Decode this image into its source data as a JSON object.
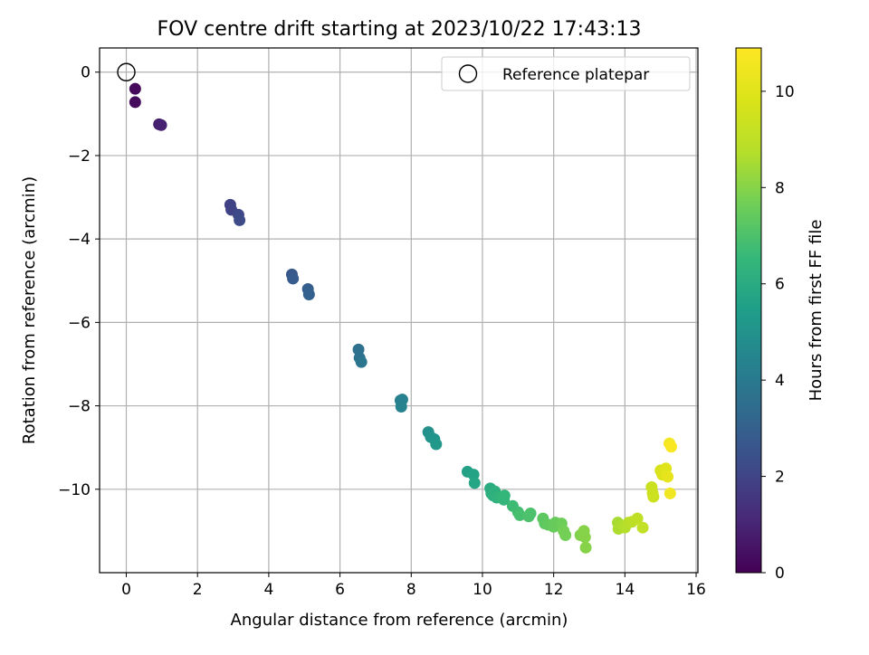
{
  "chart_data": {
    "type": "scatter",
    "title": "FOV centre drift starting at 2023/10/22 17:43:13",
    "xlabel": "Angular distance from reference (arcmin)",
    "ylabel": "Rotation from reference (arcmin)",
    "colorbar_label": "Hours from first FF file",
    "colormap": "viridis",
    "xlim": [
      -0.75,
      16.05
    ],
    "ylim": [
      -12.0,
      0.58
    ],
    "clim": [
      0,
      10.9
    ],
    "xticks": [
      "0",
      "2",
      "4",
      "6",
      "8",
      "10",
      "12",
      "14",
      "16"
    ],
    "yticks": [
      "0",
      "−2",
      "−4",
      "−6",
      "−8",
      "−10"
    ],
    "cticks": [
      "0",
      "2",
      "4",
      "6",
      "8",
      "10"
    ],
    "grid": true,
    "legend": {
      "placement": "upper right",
      "label": "Reference platepar"
    },
    "reference_point": {
      "x": 0,
      "y": 0
    },
    "points": [
      {
        "x": 0.25,
        "y": -0.4,
        "h": 0.2
      },
      {
        "x": 0.25,
        "y": -0.72,
        "h": 0.3
      },
      {
        "x": 0.92,
        "y": -1.25,
        "h": 0.8
      },
      {
        "x": 0.98,
        "y": -1.27,
        "h": 0.9
      },
      {
        "x": 2.92,
        "y": -3.18,
        "h": 1.9
      },
      {
        "x": 2.95,
        "y": -3.3,
        "h": 2.0
      },
      {
        "x": 3.15,
        "y": -3.42,
        "h": 2.1
      },
      {
        "x": 3.18,
        "y": -3.55,
        "h": 2.2
      },
      {
        "x": 4.65,
        "y": -4.85,
        "h": 2.7
      },
      {
        "x": 4.68,
        "y": -4.95,
        "h": 2.8
      },
      {
        "x": 5.1,
        "y": -5.2,
        "h": 2.9
      },
      {
        "x": 5.13,
        "y": -5.33,
        "h": 3.0
      },
      {
        "x": 6.52,
        "y": -6.65,
        "h": 3.6
      },
      {
        "x": 6.55,
        "y": -6.85,
        "h": 3.7
      },
      {
        "x": 6.6,
        "y": -6.95,
        "h": 3.8
      },
      {
        "x": 7.7,
        "y": -7.87,
        "h": 4.2
      },
      {
        "x": 7.75,
        "y": -7.85,
        "h": 4.3
      },
      {
        "x": 7.72,
        "y": -8.02,
        "h": 4.4
      },
      {
        "x": 8.48,
        "y": -8.63,
        "h": 4.9
      },
      {
        "x": 8.55,
        "y": -8.75,
        "h": 5.0
      },
      {
        "x": 8.65,
        "y": -8.8,
        "h": 5.1
      },
      {
        "x": 8.7,
        "y": -8.92,
        "h": 5.2
      },
      {
        "x": 9.58,
        "y": -9.58,
        "h": 5.6
      },
      {
        "x": 9.75,
        "y": -9.65,
        "h": 5.7
      },
      {
        "x": 9.78,
        "y": -9.85,
        "h": 5.8
      },
      {
        "x": 10.22,
        "y": -9.98,
        "h": 6.0
      },
      {
        "x": 10.25,
        "y": -10.1,
        "h": 6.1
      },
      {
        "x": 10.3,
        "y": -10.15,
        "h": 6.2
      },
      {
        "x": 10.35,
        "y": -10.05,
        "h": 6.2
      },
      {
        "x": 10.4,
        "y": -10.2,
        "h": 6.3
      },
      {
        "x": 10.52,
        "y": -10.2,
        "h": 6.4
      },
      {
        "x": 10.6,
        "y": -10.25,
        "h": 6.5
      },
      {
        "x": 10.62,
        "y": -10.15,
        "h": 6.5
      },
      {
        "x": 10.85,
        "y": -10.4,
        "h": 6.7
      },
      {
        "x": 11.0,
        "y": -10.55,
        "h": 6.8
      },
      {
        "x": 11.05,
        "y": -10.62,
        "h": 6.9
      },
      {
        "x": 11.3,
        "y": -10.65,
        "h": 7.0
      },
      {
        "x": 11.35,
        "y": -10.58,
        "h": 7.0
      },
      {
        "x": 11.7,
        "y": -10.7,
        "h": 7.3
      },
      {
        "x": 11.75,
        "y": -10.82,
        "h": 7.3
      },
      {
        "x": 11.85,
        "y": -10.85,
        "h": 7.4
      },
      {
        "x": 12.0,
        "y": -10.9,
        "h": 7.5
      },
      {
        "x": 12.05,
        "y": -10.8,
        "h": 7.5
      },
      {
        "x": 12.22,
        "y": -10.82,
        "h": 7.6
      },
      {
        "x": 12.28,
        "y": -11.0,
        "h": 7.7
      },
      {
        "x": 12.33,
        "y": -11.1,
        "h": 7.7
      },
      {
        "x": 12.75,
        "y": -11.1,
        "h": 7.9
      },
      {
        "x": 12.85,
        "y": -11.0,
        "h": 8.0
      },
      {
        "x": 12.88,
        "y": -11.15,
        "h": 8.0
      },
      {
        "x": 12.9,
        "y": -11.4,
        "h": 8.0
      },
      {
        "x": 13.8,
        "y": -10.8,
        "h": 8.5
      },
      {
        "x": 13.82,
        "y": -10.95,
        "h": 8.6
      },
      {
        "x": 13.9,
        "y": -10.88,
        "h": 8.6
      },
      {
        "x": 14.0,
        "y": -10.92,
        "h": 8.7
      },
      {
        "x": 14.1,
        "y": -10.8,
        "h": 8.8
      },
      {
        "x": 14.2,
        "y": -10.78,
        "h": 8.9
      },
      {
        "x": 14.35,
        "y": -10.7,
        "h": 9.0
      },
      {
        "x": 14.5,
        "y": -10.92,
        "h": 9.1
      },
      {
        "x": 14.75,
        "y": -9.95,
        "h": 9.3
      },
      {
        "x": 14.78,
        "y": -10.1,
        "h": 9.4
      },
      {
        "x": 14.8,
        "y": -10.18,
        "h": 9.4
      },
      {
        "x": 15.0,
        "y": -9.55,
        "h": 9.7
      },
      {
        "x": 15.05,
        "y": -9.65,
        "h": 9.8
      },
      {
        "x": 15.1,
        "y": -9.6,
        "h": 9.9
      },
      {
        "x": 15.15,
        "y": -9.5,
        "h": 10.0
      },
      {
        "x": 15.2,
        "y": -9.7,
        "h": 10.2
      },
      {
        "x": 15.25,
        "y": -8.9,
        "h": 10.6
      },
      {
        "x": 15.3,
        "y": -8.98,
        "h": 10.8
      },
      {
        "x": 15.27,
        "y": -10.1,
        "h": 10.5
      }
    ]
  }
}
